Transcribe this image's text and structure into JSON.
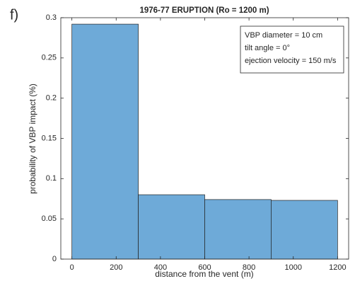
{
  "panel_label": "f)",
  "chart_data": {
    "type": "histogram",
    "title": "1976-77 ERUPTION (Ro = 1200 m)",
    "x_label": "distance from the vent (m)",
    "y_label": "probability of VBP impact (%)",
    "bins": [
      0,
      300,
      600,
      900,
      1200
    ],
    "counts": [
      0.292,
      0.08,
      0.074,
      0.073
    ],
    "color": "#6eaad8",
    "xlim": [
      -50,
      1250
    ],
    "xticks": [
      0,
      200,
      400,
      600,
      800,
      1000,
      1200
    ],
    "ylim": [
      0,
      0.3
    ],
    "yticks": [
      0,
      0.05,
      0.1,
      0.15,
      0.2,
      0.25,
      0.3
    ],
    "grid": false,
    "annotations": [
      "VBP diameter = 10 cm",
      "tilt angle = 0°",
      "ejection velocity = 150 m/s"
    ]
  }
}
